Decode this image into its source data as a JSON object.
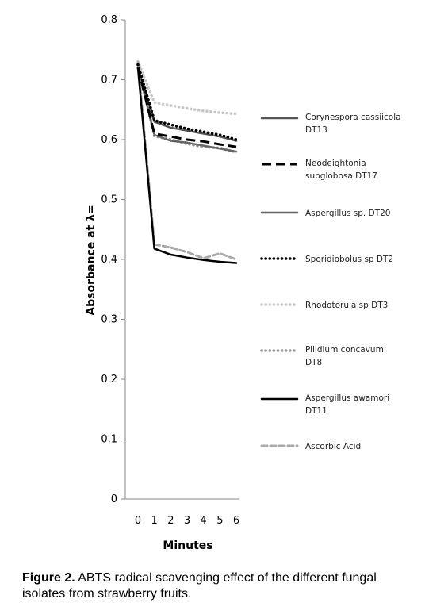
{
  "chart_data": {
    "type": "line",
    "xlabel": "Minutes",
    "ylabel": "Absorbance at λ=",
    "x": [
      0,
      1,
      2,
      3,
      4,
      5,
      6
    ],
    "xlim": [
      0,
      6
    ],
    "ylim": [
      0,
      0.8
    ],
    "yticks": [
      "0",
      "0.1",
      "0.2",
      "0.3",
      "0.4",
      "0.5",
      "0.6",
      "0.7",
      "0.8"
    ],
    "xticks": [
      "0",
      "1",
      "2",
      "3",
      "4",
      "5",
      "6"
    ],
    "grid": false,
    "legend_position": "right",
    "series": [
      {
        "name": "Corynespora cassiicola DT13",
        "name_lines": [
          "Corynespora cassiicola",
          "DT13"
        ],
        "values": [
          0.72,
          0.63,
          0.62,
          0.615,
          0.61,
          0.605,
          0.598
        ],
        "color": "#555555",
        "dash": "solid"
      },
      {
        "name": "Neodeightonia subglobosa DT17",
        "name_lines": [
          "Neodeightonia",
          "subglobosa DT17"
        ],
        "values": [
          0.72,
          0.61,
          0.605,
          0.6,
          0.597,
          0.592,
          0.588
        ],
        "color": "#000000",
        "dash": "long-dash"
      },
      {
        "name": "Aspergillus sp. DT20",
        "name_lines": [
          "Aspergillus sp. DT20"
        ],
        "values": [
          0.72,
          0.608,
          0.598,
          0.595,
          0.59,
          0.585,
          0.58
        ],
        "color": "#666666",
        "dash": "solid"
      },
      {
        "name": "Sporidiobolus sp DT2",
        "name_lines": [
          "Sporidiobolus sp DT2"
        ],
        "values": [
          0.725,
          0.632,
          0.625,
          0.618,
          0.613,
          0.608,
          0.6
        ],
        "color": "#000000",
        "dash": "dotted"
      },
      {
        "name": "Rhodotorula sp DT3",
        "name_lines": [
          "Rhodotorula sp DT3"
        ],
        "values": [
          0.73,
          0.662,
          0.657,
          0.652,
          0.648,
          0.645,
          0.643
        ],
        "color": "#c8c8c8",
        "dash": "dotted"
      },
      {
        "name": "Pilidium concavum DT8",
        "name_lines": [
          "Pilidium concavum",
          "DT8"
        ],
        "values": [
          0.725,
          0.606,
          0.6,
          0.593,
          0.588,
          0.586,
          0.579
        ],
        "color": "#999999",
        "dash": "dotted"
      },
      {
        "name": "Aspergillus awamori DT11",
        "name_lines": [
          "Aspergillus awamori",
          "DT11"
        ],
        "values": [
          0.72,
          0.418,
          0.408,
          0.403,
          0.399,
          0.396,
          0.394
        ],
        "color": "#000000",
        "dash": "solid"
      },
      {
        "name": "Ascorbic Acid",
        "name_lines": [
          "Ascorbic Acid"
        ],
        "values": [
          0.73,
          0.425,
          0.42,
          0.412,
          0.402,
          0.41,
          0.4
        ],
        "color": "#aaaaaa",
        "dash": "dashed"
      }
    ]
  },
  "caption": {
    "label": "Figure 2.",
    "text": " ABTS radical scavenging effect of the different fungal isolates from strawberry fruits."
  }
}
